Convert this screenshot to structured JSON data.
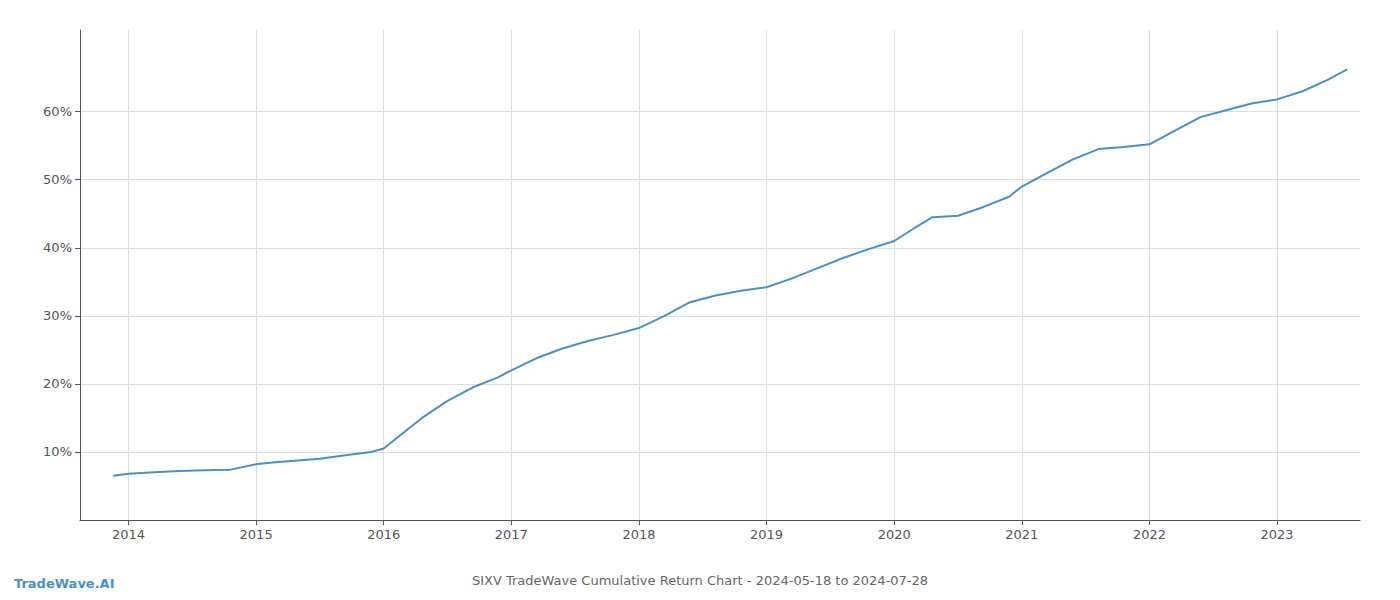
{
  "chart_data": {
    "type": "line",
    "title": "SIXV TradeWave Cumulative Return Chart - 2024-05-18 to 2024-07-28",
    "annotations": [
      "TradeWave.AI"
    ],
    "color": "#4a90c4",
    "x": [
      2013.88,
      2014.0,
      2014.2,
      2014.4,
      2014.6,
      2014.8,
      2015.0,
      2015.05,
      2015.15,
      2015.3,
      2015.5,
      2015.7,
      2015.9,
      2016.0,
      2016.1,
      2016.3,
      2016.5,
      2016.7,
      2016.9,
      2017.0,
      2017.2,
      2017.4,
      2017.6,
      2017.8,
      2018.0,
      2018.2,
      2018.4,
      2018.6,
      2018.8,
      2019.0,
      2019.2,
      2019.4,
      2019.6,
      2019.8,
      2020.0,
      2020.15,
      2020.3,
      2020.5,
      2020.7,
      2020.9,
      2021.0,
      2021.2,
      2021.4,
      2021.6,
      2021.8,
      2022.0,
      2022.2,
      2022.4,
      2022.6,
      2022.8,
      2023.0,
      2023.2,
      2023.4,
      2023.55
    ],
    "values": [
      0.065,
      0.068,
      0.07,
      0.072,
      0.073,
      0.074,
      0.082,
      0.083,
      0.085,
      0.087,
      0.09,
      0.095,
      0.1,
      0.105,
      0.12,
      0.15,
      0.175,
      0.195,
      0.21,
      0.22,
      0.238,
      0.252,
      0.263,
      0.272,
      0.282,
      0.3,
      0.32,
      0.33,
      0.337,
      0.342,
      0.355,
      0.37,
      0.385,
      0.398,
      0.41,
      0.428,
      0.445,
      0.447,
      0.46,
      0.475,
      0.49,
      0.51,
      0.53,
      0.545,
      0.548,
      0.552,
      0.572,
      0.592,
      0.602,
      0.612,
      0.618,
      0.63,
      0.647,
      0.662
    ],
    "xlim": [
      2013.62,
      2023.65
    ],
    "xticks": [
      2014,
      2015,
      2016,
      2017,
      2018,
      2019,
      2020,
      2021,
      2022,
      2023
    ],
    "ylim": [
      0.0,
      0.72
    ],
    "yticks": [
      {
        "value": 0.1,
        "label": "10%"
      },
      {
        "value": 0.2,
        "label": "20%"
      },
      {
        "value": 0.3,
        "label": "30%"
      },
      {
        "value": 0.4,
        "label": "40%"
      },
      {
        "value": 0.5,
        "label": "50%"
      },
      {
        "value": 0.6,
        "label": "60%"
      }
    ],
    "grid": true
  }
}
